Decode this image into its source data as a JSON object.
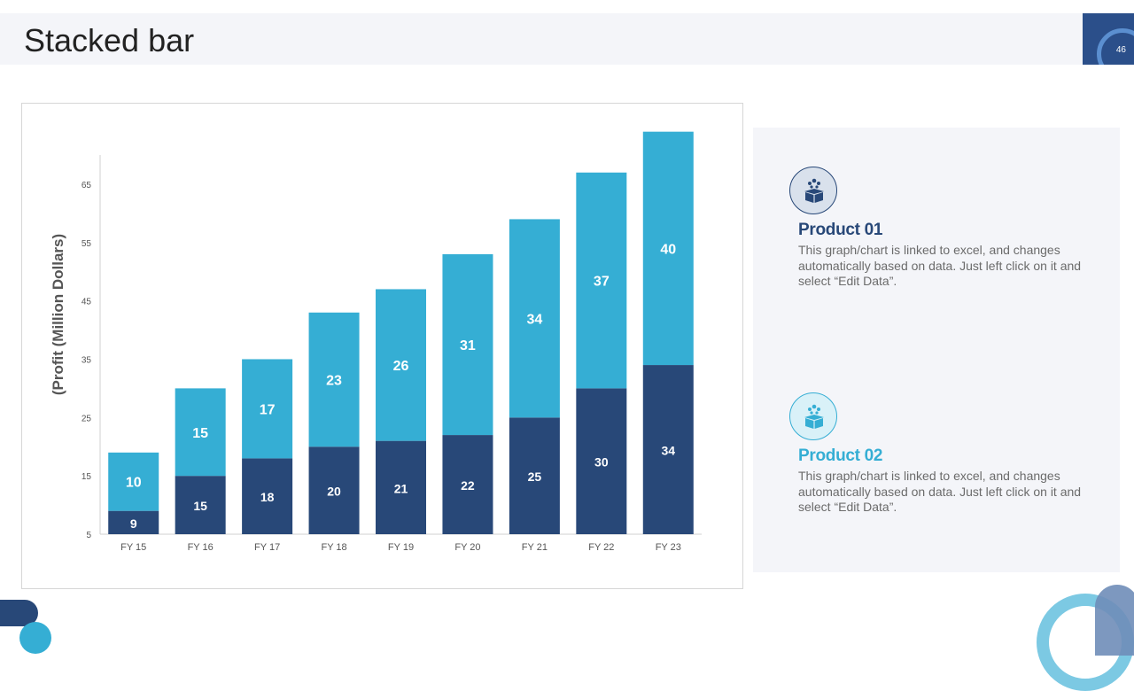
{
  "slide": {
    "title": "Stacked bar",
    "page_number": "46"
  },
  "colors": {
    "dark": "#284878",
    "light": "#35aed4",
    "axis_text": "#555555",
    "title_text": "#222222"
  },
  "chart_data": {
    "type": "bar",
    "stacked": true,
    "title": "",
    "xlabel": "",
    "ylabel": "(Profit  (Million Dollars)",
    "categories": [
      "FY 15",
      "FY 16",
      "FY 17",
      "FY 18",
      "FY 19",
      "FY 20",
      "FY 21",
      "FY 22",
      "FY 23"
    ],
    "series": [
      {
        "name": "Product 01",
        "color": "#284878",
        "values": [
          9,
          15,
          18,
          20,
          21,
          22,
          25,
          30,
          34
        ]
      },
      {
        "name": "Product 02",
        "color": "#35aed4",
        "values": [
          10,
          15,
          17,
          23,
          26,
          31,
          34,
          37,
          40
        ]
      }
    ],
    "yticks": [
      5,
      15,
      25,
      35,
      45,
      55,
      65
    ],
    "ylim": [
      5,
      70
    ],
    "grid": false,
    "legend": "none"
  },
  "products": [
    {
      "title": "Product 01",
      "icon": "gift-box-icon",
      "description": "This graph/chart is linked to excel, and changes automatically based on data. Just left click on it and select “Edit Data”."
    },
    {
      "title": "Product 02",
      "icon": "gift-box-icon",
      "description": "This graph/chart is linked to excel, and changes automatically based on data. Just left click on it and select “Edit Data”."
    }
  ]
}
